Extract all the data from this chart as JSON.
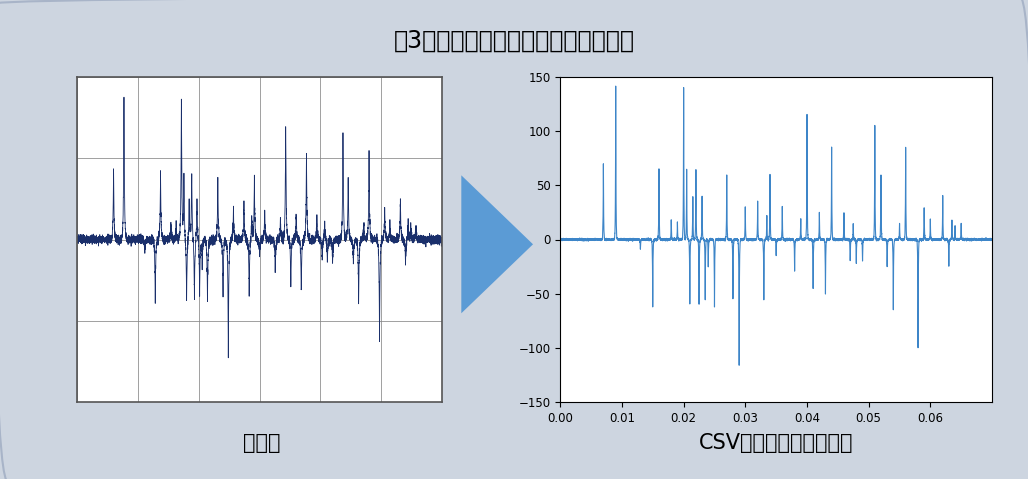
{
  "title": "図3　針状波のような形状の零相電流",
  "title_fontsize": 17,
  "left_label": "元画像",
  "right_label": "CSVから再構成した画像",
  "label_fontsize": 15,
  "bg_color": "#cdd5e0",
  "panel_bg": "#ffffff",
  "arrow_color": "#5b9bd5",
  "line_color_left": "#1a2f6b",
  "line_color_right": "#3d85c8",
  "ylim": [
    -150,
    150
  ],
  "yticks": [
    -150,
    -100,
    -50,
    0,
    50,
    100,
    150
  ],
  "xlim": [
    0.0,
    0.07
  ],
  "xticks": [
    0.0,
    0.01,
    0.02,
    0.03,
    0.04,
    0.05,
    0.06
  ],
  "xticklabels": [
    "0.00",
    "0.01",
    "0.02",
    "0.03",
    "0.04",
    "0.05",
    "0.06"
  ],
  "num_points": 7000,
  "spike_positions": [
    0.007,
    0.009,
    0.013,
    0.015,
    0.016,
    0.018,
    0.019,
    0.02,
    0.0205,
    0.021,
    0.0215,
    0.022,
    0.0225,
    0.023,
    0.0235,
    0.024,
    0.025,
    0.027,
    0.028,
    0.029,
    0.03,
    0.032,
    0.033,
    0.0335,
    0.034,
    0.035,
    0.036,
    0.038,
    0.039,
    0.04,
    0.041,
    0.042,
    0.043,
    0.044,
    0.046,
    0.047,
    0.0475,
    0.048,
    0.049,
    0.051,
    0.052,
    0.053,
    0.054,
    0.055,
    0.056,
    0.058,
    0.059,
    0.06,
    0.062,
    0.063,
    0.0635,
    0.064,
    0.065
  ],
  "spike_amplitudes": [
    70,
    140,
    -10,
    -62,
    65,
    18,
    16,
    140,
    65,
    -60,
    40,
    65,
    -60,
    40,
    -55,
    -25,
    -62,
    60,
    -55,
    -115,
    30,
    36,
    -55,
    22,
    60,
    -15,
    30,
    -30,
    20,
    115,
    -45,
    25,
    -50,
    85,
    25,
    -20,
    15,
    -22,
    -20,
    105,
    60,
    -25,
    -65,
    15,
    85,
    -100,
    30,
    18,
    40,
    -25,
    18,
    12,
    15
  ],
  "left_spike_positions": [
    0.007,
    0.009,
    0.013,
    0.015,
    0.016,
    0.018,
    0.019,
    0.02,
    0.0205,
    0.021,
    0.0215,
    0.022,
    0.0225,
    0.023,
    0.0235,
    0.024,
    0.025,
    0.027,
    0.028,
    0.029,
    0.03,
    0.032,
    0.033,
    0.0335,
    0.034,
    0.035,
    0.036,
    0.038,
    0.039,
    0.04,
    0.041,
    0.042,
    0.043,
    0.044,
    0.046,
    0.047,
    0.0475,
    0.048,
    0.049,
    0.051,
    0.052,
    0.053,
    0.054,
    0.055,
    0.056,
    0.058,
    0.059,
    0.06,
    0.062,
    0.063,
    0.0635,
    0.064,
    0.065
  ],
  "left_spike_amplitudes": [
    70,
    140,
    -10,
    -62,
    65,
    18,
    16,
    140,
    65,
    -60,
    40,
    65,
    -60,
    40,
    -55,
    -25,
    -62,
    60,
    -55,
    -115,
    30,
    36,
    -55,
    22,
    60,
    -15,
    30,
    -30,
    20,
    115,
    -45,
    25,
    -50,
    85,
    25,
    -20,
    15,
    -22,
    -20,
    105,
    60,
    -25,
    -65,
    15,
    85,
    -100,
    30,
    18,
    40,
    -25,
    18,
    12,
    15
  ]
}
